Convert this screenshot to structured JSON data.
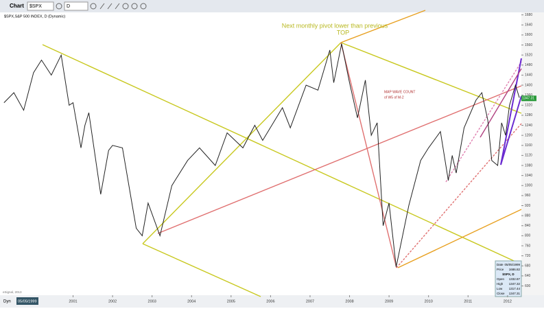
{
  "toolbar": {
    "title": "Chart",
    "symbol": "$SPX",
    "interval": "D"
  },
  "chart_data": {
    "type": "line",
    "title": "$SPX,S&P 500 INDEX, D (Dynamic)",
    "annotations": [
      "Next monthly pivot lower than previous",
      "TOP",
      "MAP WAVE COUNT",
      "of W5 of M-2"
    ],
    "x": [
      1999.25,
      1999.5,
      1999.75,
      2000.0,
      2000.2,
      2000.45,
      2000.7,
      2000.9,
      2001.0,
      2001.2,
      2001.3,
      2001.4,
      2001.7,
      2001.9,
      2002.0,
      2002.25,
      2002.5,
      2002.6,
      2002.75,
      2002.9,
      2003.2,
      2003.5,
      2003.9,
      2004.2,
      2004.6,
      2004.9,
      2005.3,
      2005.6,
      2005.8,
      2006.3,
      2006.5,
      2006.9,
      2007.2,
      2007.5,
      2007.6,
      2007.8,
      2008.0,
      2008.2,
      2008.4,
      2008.55,
      2008.7,
      2008.85,
      2008.95,
      2009.0,
      2009.18,
      2009.5,
      2009.8,
      2010.0,
      2010.3,
      2010.5,
      2010.6,
      2010.7,
      2010.9,
      2011.2,
      2011.35,
      2011.5,
      2011.6,
      2011.75,
      2011.85,
      2011.95,
      2012.05,
      2012.2,
      2012.3
    ],
    "values": [
      1330,
      1370,
      1300,
      1450,
      1500,
      1440,
      1520,
      1320,
      1330,
      1150,
      1240,
      1290,
      965,
      1140,
      1160,
      1150,
      920,
      830,
      800,
      930,
      800,
      1000,
      1100,
      1150,
      1080,
      1210,
      1150,
      1240,
      1180,
      1310,
      1230,
      1400,
      1380,
      1540,
      1410,
      1565,
      1410,
      1270,
      1420,
      1200,
      1250,
      840,
      900,
      930,
      676,
      920,
      1100,
      1150,
      1215,
      1020,
      1120,
      1050,
      1230,
      1340,
      1370,
      1260,
      1100,
      1080,
      1250,
      1200,
      1320,
      1400,
      1350
    ],
    "color": "#222222",
    "xlim": [
      1999.15,
      2012.35
    ],
    "xticks": [
      2001,
      2002,
      2003,
      2004,
      2005,
      2006,
      2007,
      2008,
      2009,
      2010,
      2011,
      2012
    ],
    "ylim": [
      563,
      1701
    ],
    "yticks": [
      600,
      640,
      680,
      720,
      760,
      800,
      840,
      880,
      920,
      960,
      1000,
      1040,
      1080,
      1120,
      1160,
      1200,
      1240,
      1280,
      1320,
      1360,
      1400,
      1440,
      1480,
      1520,
      1560,
      1600,
      1640,
      1680
    ],
    "last_price": 1347.31
  },
  "info_panel": {
    "rows": [
      [
        "Date",
        "05/05/1999"
      ],
      [
        "Price",
        "1686.82"
      ],
      [
        "$SPX, D",
        ""
      ],
      [
        "Open",
        "1332.87"
      ],
      [
        "High",
        "1347.32"
      ],
      [
        "Low",
        "1317.44"
      ],
      [
        "Close",
        "1347.31"
      ]
    ]
  },
  "footer": {
    "mode": "Dyn",
    "date": "05/05/1999",
    "credit": "eSignal, 2013"
  }
}
